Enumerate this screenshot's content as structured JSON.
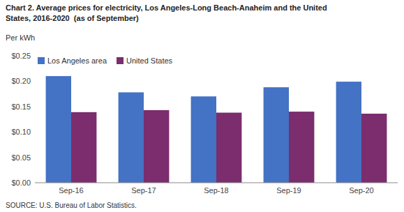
{
  "chart_data": {
    "type": "bar",
    "title": [
      "Chart 2. Average prices for electricity, Los Angeles-Long Beach-Anaheim and the United",
      "States, 2016-2020  (as of September)"
    ],
    "ylabel": "Per kWh",
    "annotations": [
      "SOURCE: U.S. Bureau of Labor Statistics."
    ],
    "categories": [
      "Sep-16",
      "Sep-17",
      "Sep-18",
      "Sep-19",
      "Sep-20"
    ],
    "series": [
      {
        "name": "Los Angeles area",
        "color": "#4472C4",
        "values": [
          0.21,
          0.178,
          0.17,
          0.188,
          0.199
        ]
      },
      {
        "name": "United States",
        "color": "#7B2D6E",
        "values": [
          0.139,
          0.143,
          0.138,
          0.14,
          0.136
        ]
      }
    ],
    "ylim": [
      0.0,
      0.25
    ],
    "yticks": [
      {
        "value": 0.0,
        "label": "$0.00"
      },
      {
        "value": 0.05,
        "label": "$0.05"
      },
      {
        "value": 0.1,
        "label": "$0.10"
      },
      {
        "value": 0.15,
        "label": "$0.15"
      },
      {
        "value": 0.2,
        "label": "$0.20"
      },
      {
        "value": 0.25,
        "label": "$0.25"
      }
    ],
    "grid": false,
    "legend": "upper left"
  }
}
